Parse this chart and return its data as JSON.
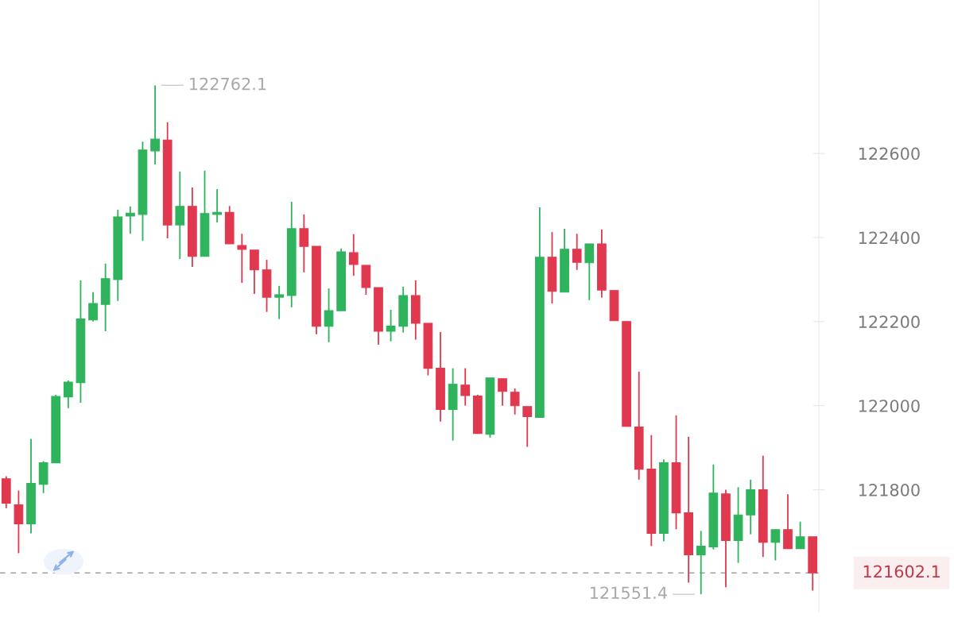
{
  "chart_data": {
    "type": "candlestick",
    "categories": [
      null,
      null,
      null,
      null,
      null,
      null,
      null,
      null,
      null,
      null,
      null,
      null,
      null,
      null,
      null,
      null,
      null,
      null,
      null,
      null,
      null,
      null,
      null,
      null,
      null,
      null,
      null,
      null,
      null,
      null,
      null,
      null,
      null,
      null,
      null,
      null,
      null,
      null,
      null,
      null,
      null,
      null,
      null,
      null,
      null,
      null,
      null,
      null,
      null,
      null,
      null,
      null,
      null,
      null,
      null,
      null,
      null,
      null,
      null,
      null,
      null,
      null,
      null,
      null,
      null,
      null
    ],
    "ohlc": [
      [
        121826,
        121832,
        121756,
        121768
      ],
      [
        121764,
        121798,
        121649,
        121719
      ],
      [
        121719,
        121921,
        121696,
        121815
      ],
      [
        121813,
        121868,
        121792,
        121864
      ],
      [
        121864,
        122026,
        121864,
        122022
      ],
      [
        122021,
        122060,
        121994,
        122056
      ],
      [
        122055,
        122298,
        122007,
        122206
      ],
      [
        122204,
        122270,
        122200,
        122243
      ],
      [
        122241,
        122338,
        122177,
        122302
      ],
      [
        122300,
        122466,
        122249,
        122449
      ],
      [
        122451,
        122474,
        122409,
        122458
      ],
      [
        122455,
        122628,
        122392,
        122608
      ],
      [
        122606,
        122762.1,
        122574,
        122634
      ],
      [
        122632,
        122674,
        122398,
        122430
      ],
      [
        122430,
        122557,
        122349,
        122474
      ],
      [
        122474,
        122519,
        122330,
        122355
      ],
      [
        122355,
        122559,
        122355,
        122457
      ],
      [
        122455,
        122515,
        122436,
        122460
      ],
      [
        122460,
        122475,
        122385,
        122385
      ],
      [
        122381,
        122409,
        122292,
        122372
      ],
      [
        122370,
        122370,
        122266,
        122323
      ],
      [
        122323,
        122347,
        122223,
        122258
      ],
      [
        122258,
        122285,
        122206,
        122264
      ],
      [
        122262,
        122485,
        122234,
        122421
      ],
      [
        122421,
        122455,
        122317,
        122379
      ],
      [
        122379,
        122379,
        122170,
        122189
      ],
      [
        122189,
        122279,
        122151,
        122226
      ],
      [
        122226,
        122374,
        122226,
        122366
      ],
      [
        122364,
        122408,
        122309,
        122336
      ],
      [
        122334,
        122334,
        122264,
        122281
      ],
      [
        122281,
        122281,
        122145,
        122177
      ],
      [
        122177,
        122228,
        122153,
        122189
      ],
      [
        122189,
        122283,
        122174,
        122262
      ],
      [
        122262,
        122298,
        122157,
        122196
      ],
      [
        122196,
        122196,
        122072,
        122089
      ],
      [
        122089,
        122175,
        121962,
        121991
      ],
      [
        121991,
        122089,
        121917,
        122051
      ],
      [
        122049,
        122089,
        122000,
        122024
      ],
      [
        122023,
        122026,
        121934,
        121934
      ],
      [
        121932,
        122066,
        121924,
        122066
      ],
      [
        122064,
        122064,
        122000,
        122034
      ],
      [
        122032,
        122041,
        121979,
        122000
      ],
      [
        121998,
        121998,
        121902,
        121974
      ],
      [
        121972,
        122472,
        121972,
        122353
      ],
      [
        122353,
        122413,
        122243,
        122272
      ],
      [
        122270,
        122421,
        122270,
        122372
      ],
      [
        122372,
        122409,
        122323,
        122341
      ],
      [
        122340,
        122385,
        122251,
        122385
      ],
      [
        122385,
        122419,
        122257,
        122275
      ],
      [
        122274,
        122274,
        122202,
        122202
      ],
      [
        122200,
        122200,
        121951,
        121951
      ],
      [
        121949,
        122081,
        121824,
        121849
      ],
      [
        121849,
        121930,
        121666,
        121696
      ],
      [
        121696,
        121872,
        121677,
        121864
      ],
      [
        121864,
        121977,
        121706,
        121745
      ],
      [
        121745,
        121926,
        121579,
        121645
      ],
      [
        121645,
        121702,
        121551.4,
        121666
      ],
      [
        121664,
        121860,
        121658,
        121792
      ],
      [
        121790,
        121800,
        121568,
        121679
      ],
      [
        121679,
        121806,
        121626,
        121740
      ],
      [
        121740,
        121824,
        121694,
        121800
      ],
      [
        121800,
        121881,
        121640,
        121675
      ],
      [
        121675,
        121705,
        121632,
        121705
      ],
      [
        121705,
        121789,
        121660,
        121660
      ],
      [
        121660,
        121724,
        121660,
        121688
      ],
      [
        121688,
        121688,
        121560,
        121602.1
      ]
    ],
    "colors": [
      "#e0394f",
      "#e0394f",
      "#2fb35c",
      "#2fb35c",
      "#2fb35c",
      "#2fb35c",
      "#2fb35c",
      "#2fb35c",
      "#2fb35c",
      "#2fb35c",
      "#2fb35c",
      "#2fb35c",
      "#2fb35c",
      "#e0394f",
      "#2fb35c",
      "#e0394f",
      "#2fb35c",
      "#2fb35c",
      "#e0394f",
      "#e0394f",
      "#e0394f",
      "#e0394f",
      "#2fb35c",
      "#2fb35c",
      "#e0394f",
      "#e0394f",
      "#2fb35c",
      "#2fb35c",
      "#e0394f",
      "#e0394f",
      "#e0394f",
      "#2fb35c",
      "#2fb35c",
      "#e0394f",
      "#e0394f",
      "#e0394f",
      "#2fb35c",
      "#e0394f",
      "#e0394f",
      "#2fb35c",
      "#e0394f",
      "#e0394f",
      "#e0394f",
      "#2fb35c",
      "#e0394f",
      "#2fb35c",
      "#e0394f",
      "#2fb35c",
      "#e0394f",
      "#e0394f",
      "#e0394f",
      "#e0394f",
      "#e0394f",
      "#2fb35c",
      "#e0394f",
      "#e0394f",
      "#2fb35c",
      "#2fb35c",
      "#e0394f",
      "#2fb35c",
      "#2fb35c",
      "#e0394f",
      "#2fb35c",
      "#e0394f",
      "#2fb35c",
      "#e0394f"
    ],
    "ylim": [
      121510,
      122965
    ],
    "yticks": [
      121800,
      122000,
      122200,
      122400,
      122600
    ],
    "ref_lines": [
      {
        "axis": "y",
        "value": 121602.1,
        "label": "121602.1",
        "color": "#a0a0a0",
        "line_style": "dashed"
      }
    ],
    "annotations": [
      "122762.1",
      "121551.4"
    ]
  }
}
